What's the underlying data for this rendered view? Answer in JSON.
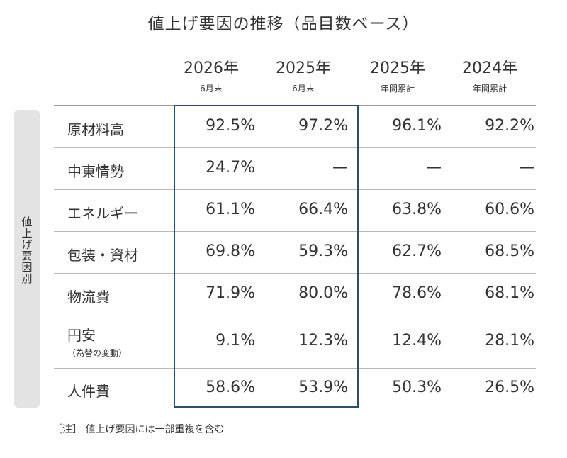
{
  "title": "値上げ要因の推移（品目数ベース）",
  "side_label": "値上げ要因別",
  "columns": [
    {
      "year": "2026年",
      "sub": "6月末"
    },
    {
      "year": "2025年",
      "sub": "6月末"
    },
    {
      "year": "2025年",
      "sub": "年間累計"
    },
    {
      "year": "2024年",
      "sub": "年間累計"
    }
  ],
  "rows": [
    {
      "label": "原材料高",
      "note": "",
      "values": [
        "92.5%",
        "97.2%",
        "96.1%",
        "92.2%"
      ]
    },
    {
      "label": "中東情勢",
      "note": "",
      "values": [
        "24.7%",
        "—",
        "—",
        "—"
      ]
    },
    {
      "label": "エネルギー",
      "note": "",
      "values": [
        "61.1%",
        "66.4%",
        "63.8%",
        "60.6%"
      ]
    },
    {
      "label": "包装・資材",
      "note": "",
      "values": [
        "69.8%",
        "59.3%",
        "62.7%",
        "68.5%"
      ]
    },
    {
      "label": "物流費",
      "note": "",
      "values": [
        "71.9%",
        "80.0%",
        "78.6%",
        "68.1%"
      ]
    },
    {
      "label": "円安",
      "note": "（為替の変動）",
      "values": [
        "9.1%",
        "12.3%",
        "12.4%",
        "28.1%"
      ]
    },
    {
      "label": "人件費",
      "note": "",
      "values": [
        "58.6%",
        "53.9%",
        "50.3%",
        "26.5%"
      ]
    }
  ],
  "footnote": "［注］ 値上げ要因には一部重複を含む",
  "colors": {
    "highlight_border": "#2e4f63",
    "side_label_bg": "#e3e3e3"
  },
  "chart_data": {
    "type": "table",
    "title": "値上げ要因の推移（品目数ベース）",
    "columns": [
      "2026年 6月末",
      "2025年 6月末",
      "2025年 年間累計",
      "2024年 年間累計"
    ],
    "categories": [
      "原材料高",
      "中東情勢",
      "エネルギー",
      "包装・資材",
      "物流費",
      "円安（為替の変動）",
      "人件費"
    ],
    "series": [
      {
        "name": "2026年 6月末",
        "values": [
          92.5,
          24.7,
          61.1,
          69.8,
          71.9,
          9.1,
          58.6
        ]
      },
      {
        "name": "2025年 6月末",
        "values": [
          97.2,
          null,
          66.4,
          59.3,
          80.0,
          12.3,
          53.9
        ]
      },
      {
        "name": "2025年 年間累計",
        "values": [
          96.1,
          null,
          63.8,
          62.7,
          78.6,
          12.4,
          50.3
        ]
      },
      {
        "name": "2024年 年間累計",
        "values": [
          92.2,
          null,
          60.6,
          68.5,
          68.1,
          28.1,
          26.5
        ]
      }
    ]
  }
}
